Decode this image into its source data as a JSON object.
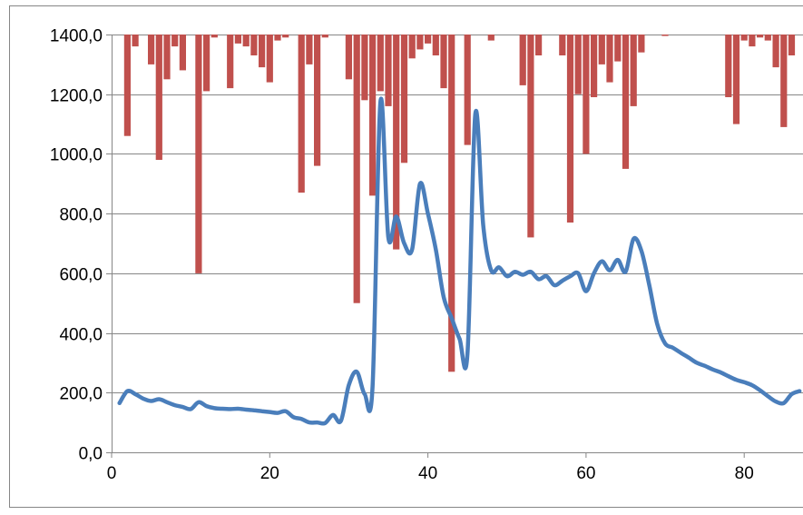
{
  "chart_data": {
    "type": "bar+line",
    "title": "",
    "xlabel": "",
    "ylabel": "",
    "x_ticks": [
      "0",
      "20",
      "40",
      "60",
      "80"
    ],
    "y_ticks": [
      "0,0",
      "200,0",
      "400,0",
      "600,0",
      "800,0",
      "1000,0",
      "1200,0",
      "1400,0"
    ],
    "xlim": [
      0,
      88
    ],
    "ylim": [
      0,
      1400
    ],
    "grid": "horizontal",
    "legend": "none",
    "colors": {
      "bars": "#c0504d",
      "line": "#4a7ebb",
      "grid": "#868686"
    },
    "bars": {
      "note_orientation": "hanging from top (value is bar bottom level)",
      "x": [
        2,
        3,
        5,
        6,
        7,
        8,
        9,
        11,
        12,
        13,
        15,
        16,
        17,
        18,
        19,
        20,
        21,
        22,
        24,
        25,
        26,
        27,
        28,
        30,
        31,
        32,
        33,
        34,
        35,
        36,
        37,
        38,
        39,
        40,
        41,
        42,
        43,
        44,
        45,
        46,
        47,
        48,
        49,
        50,
        51,
        52,
        53,
        54,
        55,
        56,
        57,
        58,
        59,
        60,
        61,
        62,
        63,
        64,
        65,
        66,
        67,
        68,
        69,
        70,
        72,
        78,
        79,
        80,
        81,
        82,
        83,
        84,
        85,
        86,
        87
      ],
      "values": [
        1060,
        1360,
        1300,
        980,
        1250,
        1360,
        1280,
        600,
        1210,
        1390,
        1220,
        1370,
        1360,
        1330,
        1290,
        1240,
        1380,
        1390,
        870,
        1300,
        960,
        1390,
        1400,
        1250,
        500,
        1180,
        860,
        1210,
        1160,
        680,
        970,
        1320,
        1350,
        1370,
        1330,
        1220,
        270,
        1400,
        1030,
        1400,
        1400,
        1380,
        1400,
        1400,
        1400,
        1230,
        720,
        1330,
        1400,
        1400,
        1330,
        770,
        1200,
        1000,
        1190,
        1300,
        1240,
        1310,
        950,
        1160,
        1340,
        1400,
        1400,
        1395,
        1400,
        1190,
        1100,
        1380,
        1360,
        1390,
        1380,
        1290,
        1090,
        1330,
        1400
      ]
    },
    "series": [
      {
        "type": "line",
        "x": [
          1,
          2,
          3,
          4,
          5,
          6,
          7,
          8,
          9,
          10,
          11,
          12,
          13,
          14,
          15,
          16,
          17,
          18,
          19,
          20,
          21,
          22,
          23,
          24,
          25,
          26,
          27,
          28,
          29,
          30,
          31,
          32,
          33,
          34,
          35,
          36,
          37,
          38,
          39,
          40,
          41,
          42,
          43,
          44,
          45,
          46,
          47,
          48,
          49,
          50,
          51,
          52,
          53,
          54,
          55,
          56,
          57,
          58,
          59,
          60,
          61,
          62,
          63,
          64,
          65,
          66,
          67,
          68,
          69,
          70,
          71,
          72,
          73,
          74,
          75,
          76,
          77,
          78,
          79,
          80,
          81,
          82,
          83,
          84,
          85,
          86,
          87
        ],
        "values": [
          165,
          205,
          195,
          180,
          172,
          178,
          168,
          158,
          152,
          145,
          168,
          155,
          148,
          146,
          145,
          146,
          143,
          141,
          138,
          135,
          132,
          138,
          118,
          112,
          100,
          100,
          98,
          125,
          105,
          225,
          270,
          195,
          220,
          1175,
          720,
          790,
          700,
          680,
          900,
          800,
          680,
          520,
          450,
          380,
          330,
          1135,
          760,
          610,
          620,
          590,
          605,
          595,
          605,
          580,
          590,
          560,
          575,
          590,
          600,
          540,
          600,
          640,
          610,
          645,
          605,
          715,
          675,
          560,
          430,
          365,
          350,
          333,
          317,
          300,
          290,
          278,
          268,
          255,
          243,
          235,
          225,
          208,
          188,
          170,
          165,
          195,
          205
        ]
      }
    ]
  }
}
